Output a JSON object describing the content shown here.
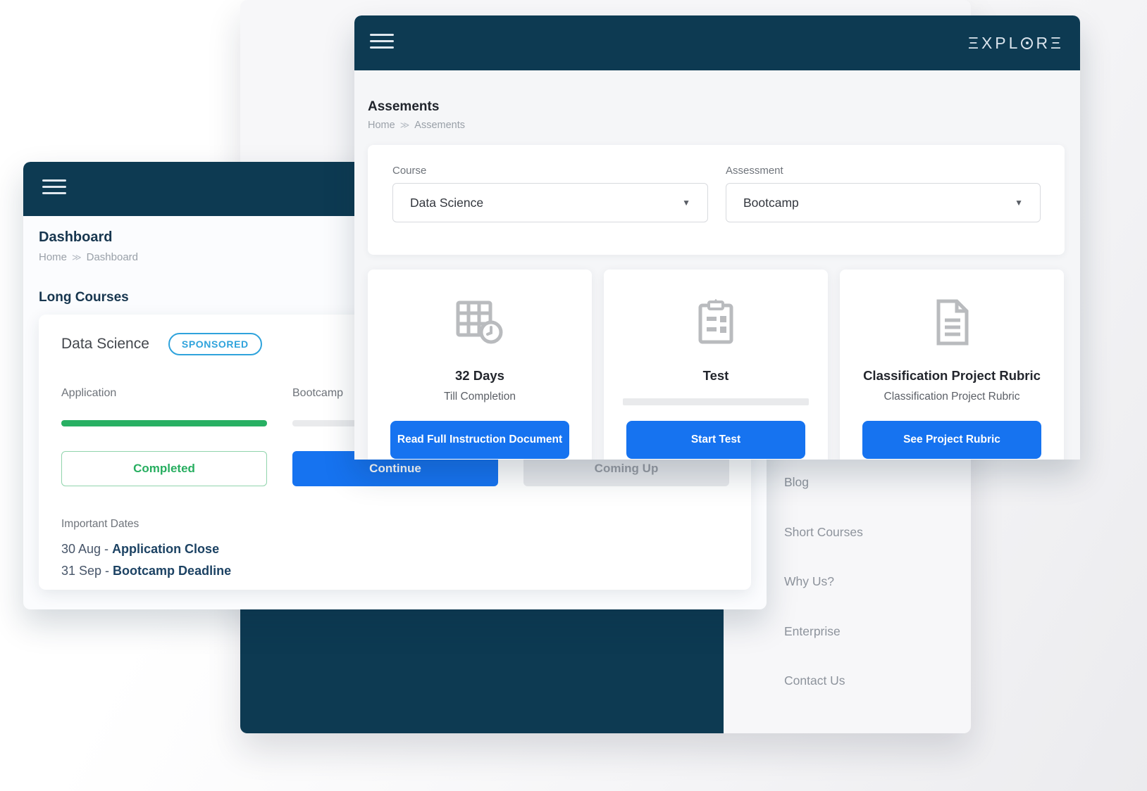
{
  "colors": {
    "navy": "#0d3a52",
    "primary_blue": "#1673f0",
    "sponsored_blue": "#2fa3dc",
    "progress_green": "#28b063",
    "muted_gray": "#e8e9ec"
  },
  "background_page": {
    "footer_links": [
      "Blog",
      "Short Courses",
      "Why Us?",
      "Enterprise",
      "Contact Us"
    ]
  },
  "dashboard_window": {
    "title": "Dashboard",
    "breadcrumb": {
      "home": "Home",
      "sep": "≫",
      "current": "Dashboard"
    },
    "section_heading": "Long Courses",
    "course_card": {
      "name": "Data Science",
      "badge": "SPONSORED",
      "stages": [
        {
          "label": "Application",
          "progress_percent": 100,
          "button": "Completed"
        },
        {
          "label": "Bootcamp",
          "progress_percent": 0,
          "button": "Continue"
        },
        {
          "label": "",
          "progress_percent": 0,
          "button": "Coming Up"
        }
      ],
      "important_dates_label": "Important Dates",
      "dates": [
        {
          "date": "30 Aug -",
          "event": "Application Close"
        },
        {
          "date": "31 Sep -",
          "event": "Bootcamp Deadline"
        }
      ]
    }
  },
  "assessments_window": {
    "logo_prefix": "ΞXPL",
    "logo_suffix": "RΞ",
    "title": "Assements",
    "breadcrumb": {
      "home": "Home",
      "sep": "≫",
      "current": "Assements"
    },
    "filters": {
      "course_label": "Course",
      "course_value": "Data Science",
      "assessment_label": "Assessment",
      "assessment_value": "Bootcamp",
      "caret": "▼"
    },
    "cards": [
      {
        "icon": "calendar-clock",
        "title": "32 Days",
        "subtitle": "Till Completion",
        "has_progress": false,
        "button": "Read Full Instruction Document"
      },
      {
        "icon": "clipboard-test",
        "title": "Test",
        "subtitle": "",
        "has_progress": true,
        "button": "Start Test"
      },
      {
        "icon": "document-rubric",
        "title": "Classification Project Rubric",
        "subtitle": "Classification Project Rubric",
        "has_progress": false,
        "button": "See Project Rubric"
      }
    ]
  }
}
